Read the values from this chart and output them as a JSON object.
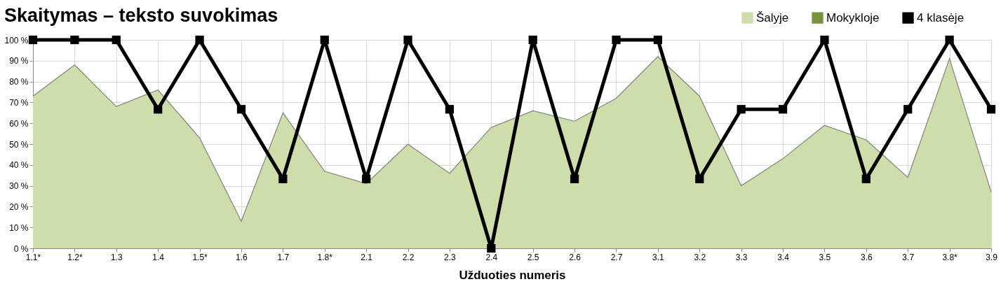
{
  "chart_data": {
    "type": "line",
    "title": "Skaitymas – teksto suvokimas",
    "xlabel": "Užduoties numeris",
    "categories": [
      "1.1*",
      "1.2*",
      "1.3",
      "1.4",
      "1.5*",
      "1.6",
      "1.7",
      "1.8*",
      "2.1",
      "2.2",
      "2.3",
      "2.4",
      "2.5",
      "2.6",
      "2.7",
      "3.1",
      "3.2",
      "3.3",
      "3.4",
      "3.5",
      "3.6",
      "3.7",
      "3.8*",
      "3.9"
    ],
    "series": [
      {
        "name": "Šalyje",
        "type": "area",
        "color": "#cddeaa",
        "values": [
          73,
          88,
          68,
          76,
          53,
          13,
          65,
          37,
          31,
          50,
          36,
          58,
          66,
          61,
          72,
          92,
          73,
          30,
          43,
          59,
          52,
          34,
          91,
          27
        ]
      },
      {
        "name": "Mokykloje",
        "marker": "triangle",
        "color": "#77933c",
        "values": [
          null,
          null,
          null,
          null,
          null,
          null,
          null,
          null,
          null,
          null,
          null,
          null,
          null,
          null,
          null,
          null,
          null,
          null,
          null,
          null,
          null,
          null,
          null,
          null
        ]
      },
      {
        "name": "4 klasėje",
        "marker": "square",
        "color": "#000000",
        "values": [
          100,
          100,
          100,
          66.7,
          100,
          66.7,
          33.3,
          100,
          33.3,
          100,
          66.7,
          0,
          100,
          33.3,
          100,
          100,
          33.3,
          66.7,
          66.7,
          100,
          33.3,
          66.7,
          100,
          66.7
        ]
      }
    ],
    "ylim": [
      0,
      100
    ],
    "yticks": [
      {
        "value": 0,
        "label": "0 %"
      },
      {
        "value": 10,
        "label": "10 %"
      },
      {
        "value": 20,
        "label": "20 %"
      },
      {
        "value": 30,
        "label": "30 %"
      },
      {
        "value": 40,
        "label": "40 %"
      },
      {
        "value": 50,
        "label": "50 %"
      },
      {
        "value": 60,
        "label": "60 %"
      },
      {
        "value": 70,
        "label": "70 %"
      },
      {
        "value": 80,
        "label": "80 %"
      },
      {
        "value": 90,
        "label": "90 %"
      },
      {
        "value": 100,
        "label": "100 %"
      }
    ],
    "grid": true,
    "legend": "top right"
  }
}
